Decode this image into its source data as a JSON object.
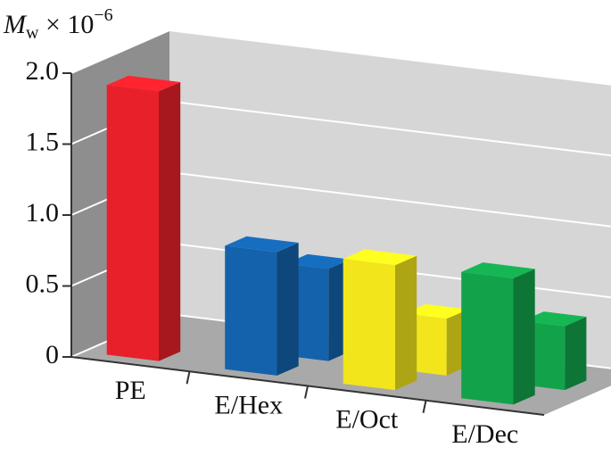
{
  "chart_data": {
    "type": "bar3d",
    "ylabel": {
      "symbol": "M",
      "subscript": "w",
      "text": " × 10",
      "exponent": "−6"
    },
    "categories": [
      "PE",
      "E/Hex",
      "E/Oct",
      "E/Dec"
    ],
    "series": [
      {
        "colors": [
          "#e8202a",
          "#1462ac",
          "#f2e51c",
          "#12a34a"
        ],
        "values": [
          1.9,
          0.87,
          0.88,
          0.89
        ]
      },
      {
        "colors": [
          "#e8202a",
          "#1462ac",
          "#f2e51c",
          "#12a34a"
        ],
        "values": [
          null,
          0.65,
          0.4,
          0.45
        ]
      }
    ],
    "ylim": [
      0,
      2
    ],
    "yticks": [
      0,
      0.5,
      {
        "value": 1,
        "label": "1.0"
      },
      1.5,
      {
        "value": 2,
        "label": "2.0"
      }
    ],
    "grid": true
  }
}
